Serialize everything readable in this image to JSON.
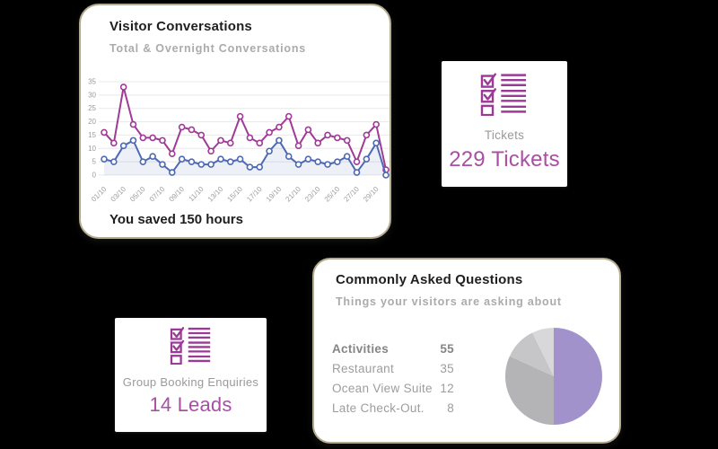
{
  "page": {
    "background": "#000000"
  },
  "cards": {
    "tickets": {
      "label": "Tickets",
      "value": "229 Tickets",
      "icon": "checklist-icon"
    },
    "group_booking": {
      "label": "Group Booking Enquiries",
      "value": "14 Leads",
      "icon": "checklist-icon"
    }
  },
  "colors": {
    "accent_purple": "#9b3a96",
    "stat_value_purple": "#a94fa5",
    "total_line": "#a03a96",
    "overnight_line": "#4d68b5",
    "overnight_area": "rgba(77,104,181,0.10)",
    "grid_line": "#e8e8e8",
    "axis_text": "#9b9b9b",
    "card_border_tan": "#b4aa90"
  },
  "chart_data": [
    {
      "type": "line",
      "title": "Visitor Conversations",
      "subtitle": "Total & Overnight Conversations",
      "footer": "You saved 150 hours",
      "x_tick_labels": [
        "01/10",
        "03/10",
        "05/10",
        "07/10",
        "09/10",
        "11/10",
        "13/10",
        "15/10",
        "17/10",
        "19/10",
        "21/10",
        "23/10",
        "25/10",
        "27/10",
        "29/10"
      ],
      "y_ticks": [
        0,
        5,
        10,
        15,
        20,
        25,
        30,
        35
      ],
      "ylim": [
        0,
        35
      ],
      "grid": true,
      "legend_position": "none",
      "series": [
        {
          "name": "Total Conversations",
          "color": "#a03a96",
          "values": [
            16,
            12,
            33,
            19,
            14,
            14,
            13,
            8,
            18,
            17,
            15,
            9,
            13,
            12,
            22,
            14,
            12,
            16,
            18,
            22,
            11,
            17,
            12,
            15,
            14,
            13,
            5,
            15,
            19,
            2
          ]
        },
        {
          "name": "Overnight Conversations",
          "color": "#4d68b5",
          "area_fill": "rgba(77,104,181,0.10)",
          "values": [
            6,
            5,
            11,
            13,
            5,
            7,
            4,
            1,
            6,
            5,
            4,
            4,
            6,
            5,
            6,
            3,
            3,
            9,
            13,
            7,
            4,
            6,
            5,
            4,
            5,
            7,
            1,
            6,
            12,
            0
          ]
        }
      ]
    },
    {
      "type": "pie",
      "title": "Commonly Asked Questions",
      "subtitle": "Things your visitors are asking about",
      "legend_position": "left-table",
      "items": [
        {
          "label": "Activities",
          "value": 55,
          "color": "#a292cb",
          "emphasis": true
        },
        {
          "label": "Restaurant",
          "value": 35,
          "color": "#b4b3b6",
          "emphasis": false
        },
        {
          "label": "Ocean View Suite",
          "value": 12,
          "color": "#c6c5c8",
          "emphasis": false
        },
        {
          "label": "Late Check-Out.",
          "value": 8,
          "color": "#d8d7da",
          "emphasis": false
        }
      ]
    }
  ]
}
